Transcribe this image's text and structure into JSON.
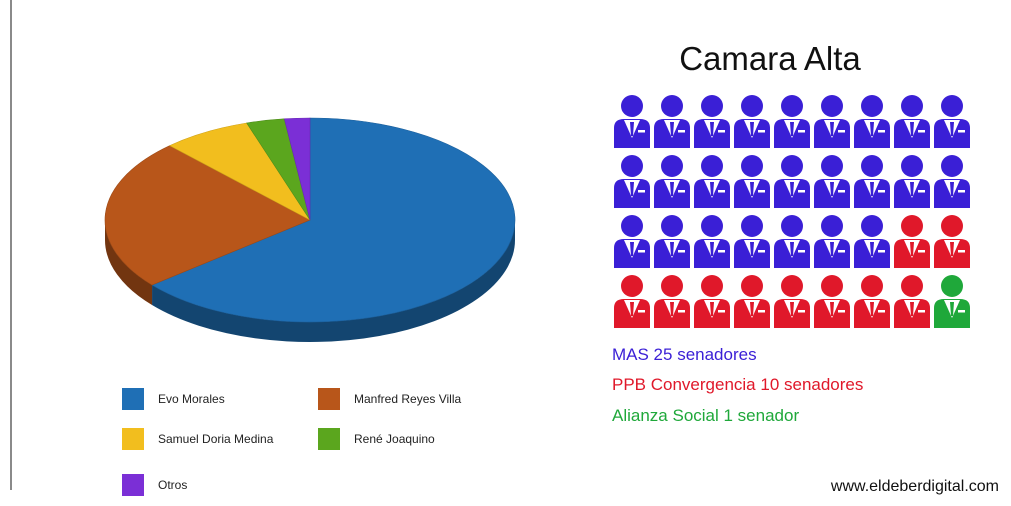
{
  "chart_data": [
    {
      "type": "pie",
      "title": "",
      "slices": [
        {
          "label": "Evo Morales",
          "value": 64,
          "color": "#1f6fb5"
        },
        {
          "label": "Manfred Reyes Villa",
          "value": 24,
          "color": "#b8561a"
        },
        {
          "label": "Samuel Doria Medina",
          "value": 7,
          "color": "#f2be1e"
        },
        {
          "label": "René Joaquino",
          "value": 3,
          "color": "#5ba61e"
        },
        {
          "label": "Otros",
          "value": 2,
          "color": "#7b2fd6"
        }
      ],
      "legend_placement": "bottom"
    },
    {
      "type": "pictogram",
      "title": "Camara Alta",
      "total_seats": 36,
      "columns": 9,
      "series": [
        {
          "name": "MAS 25 senadores",
          "value": 25,
          "color": "#3a1fd6"
        },
        {
          "name": "PPB Convergencia 10 senadores",
          "value": 10,
          "color": "#e0182a"
        },
        {
          "name": "Alianza Social 1 senador",
          "value": 1,
          "color": "#1fa83a"
        }
      ]
    }
  ],
  "footer": {
    "source": "www.eldeberdigital.com"
  }
}
